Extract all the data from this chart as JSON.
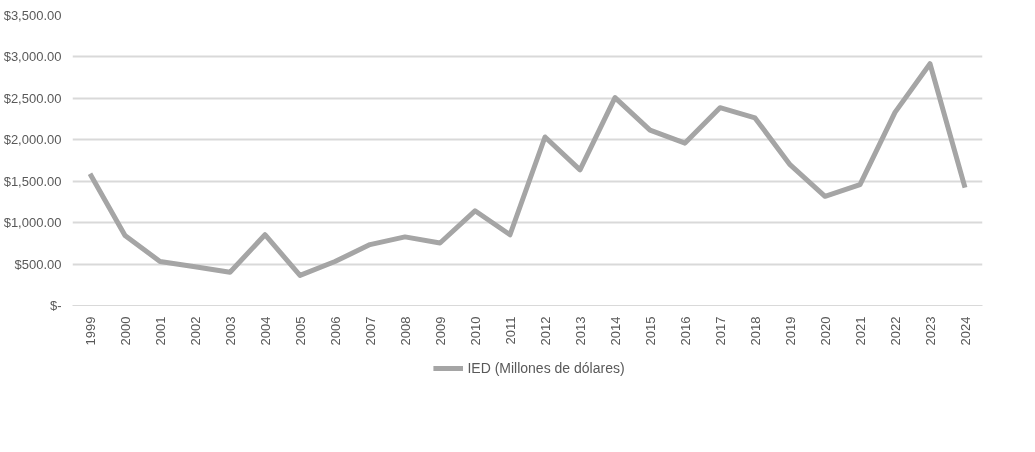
{
  "chart_data": {
    "type": "line",
    "categories": [
      "1999",
      "2000",
      "2001",
      "2002",
      "2003",
      "2004",
      "2005",
      "2006",
      "2007",
      "2008",
      "2009",
      "2010",
      "2011",
      "2012",
      "2013",
      "2014",
      "2015",
      "2016",
      "2017",
      "2018",
      "2019",
      "2020",
      "2021",
      "2022",
      "2023",
      "2024"
    ],
    "series": [
      {
        "name": "IED (Millones de dólares)",
        "color": "#a5a5a5",
        "values": [
          1590,
          846,
          531,
          468,
          401,
          854,
          364,
          531,
          735,
          828,
          754,
          1143,
          854,
          2034,
          1637,
          2509,
          2116,
          1960,
          2387,
          2264,
          1700,
          1318,
          1459,
          2331,
          2918,
          1422
        ]
      }
    ],
    "ylim": [
      0,
      3500
    ],
    "yticks": [
      {
        "value": 0,
        "label": "$-"
      },
      {
        "value": 500,
        "label": "$500.00"
      },
      {
        "value": 1000,
        "label": "$1,000.00"
      },
      {
        "value": 1500,
        "label": "$1,500.00"
      },
      {
        "value": 2000,
        "label": "$2,000.00"
      },
      {
        "value": 2500,
        "label": "$2,500.00"
      },
      {
        "value": 3000,
        "label": "$3,000.00"
      },
      {
        "value": 3500,
        "label": "$3,500.00"
      }
    ],
    "grid": "y",
    "legend": "bottom",
    "marker": "none",
    "line_style": "solid"
  }
}
